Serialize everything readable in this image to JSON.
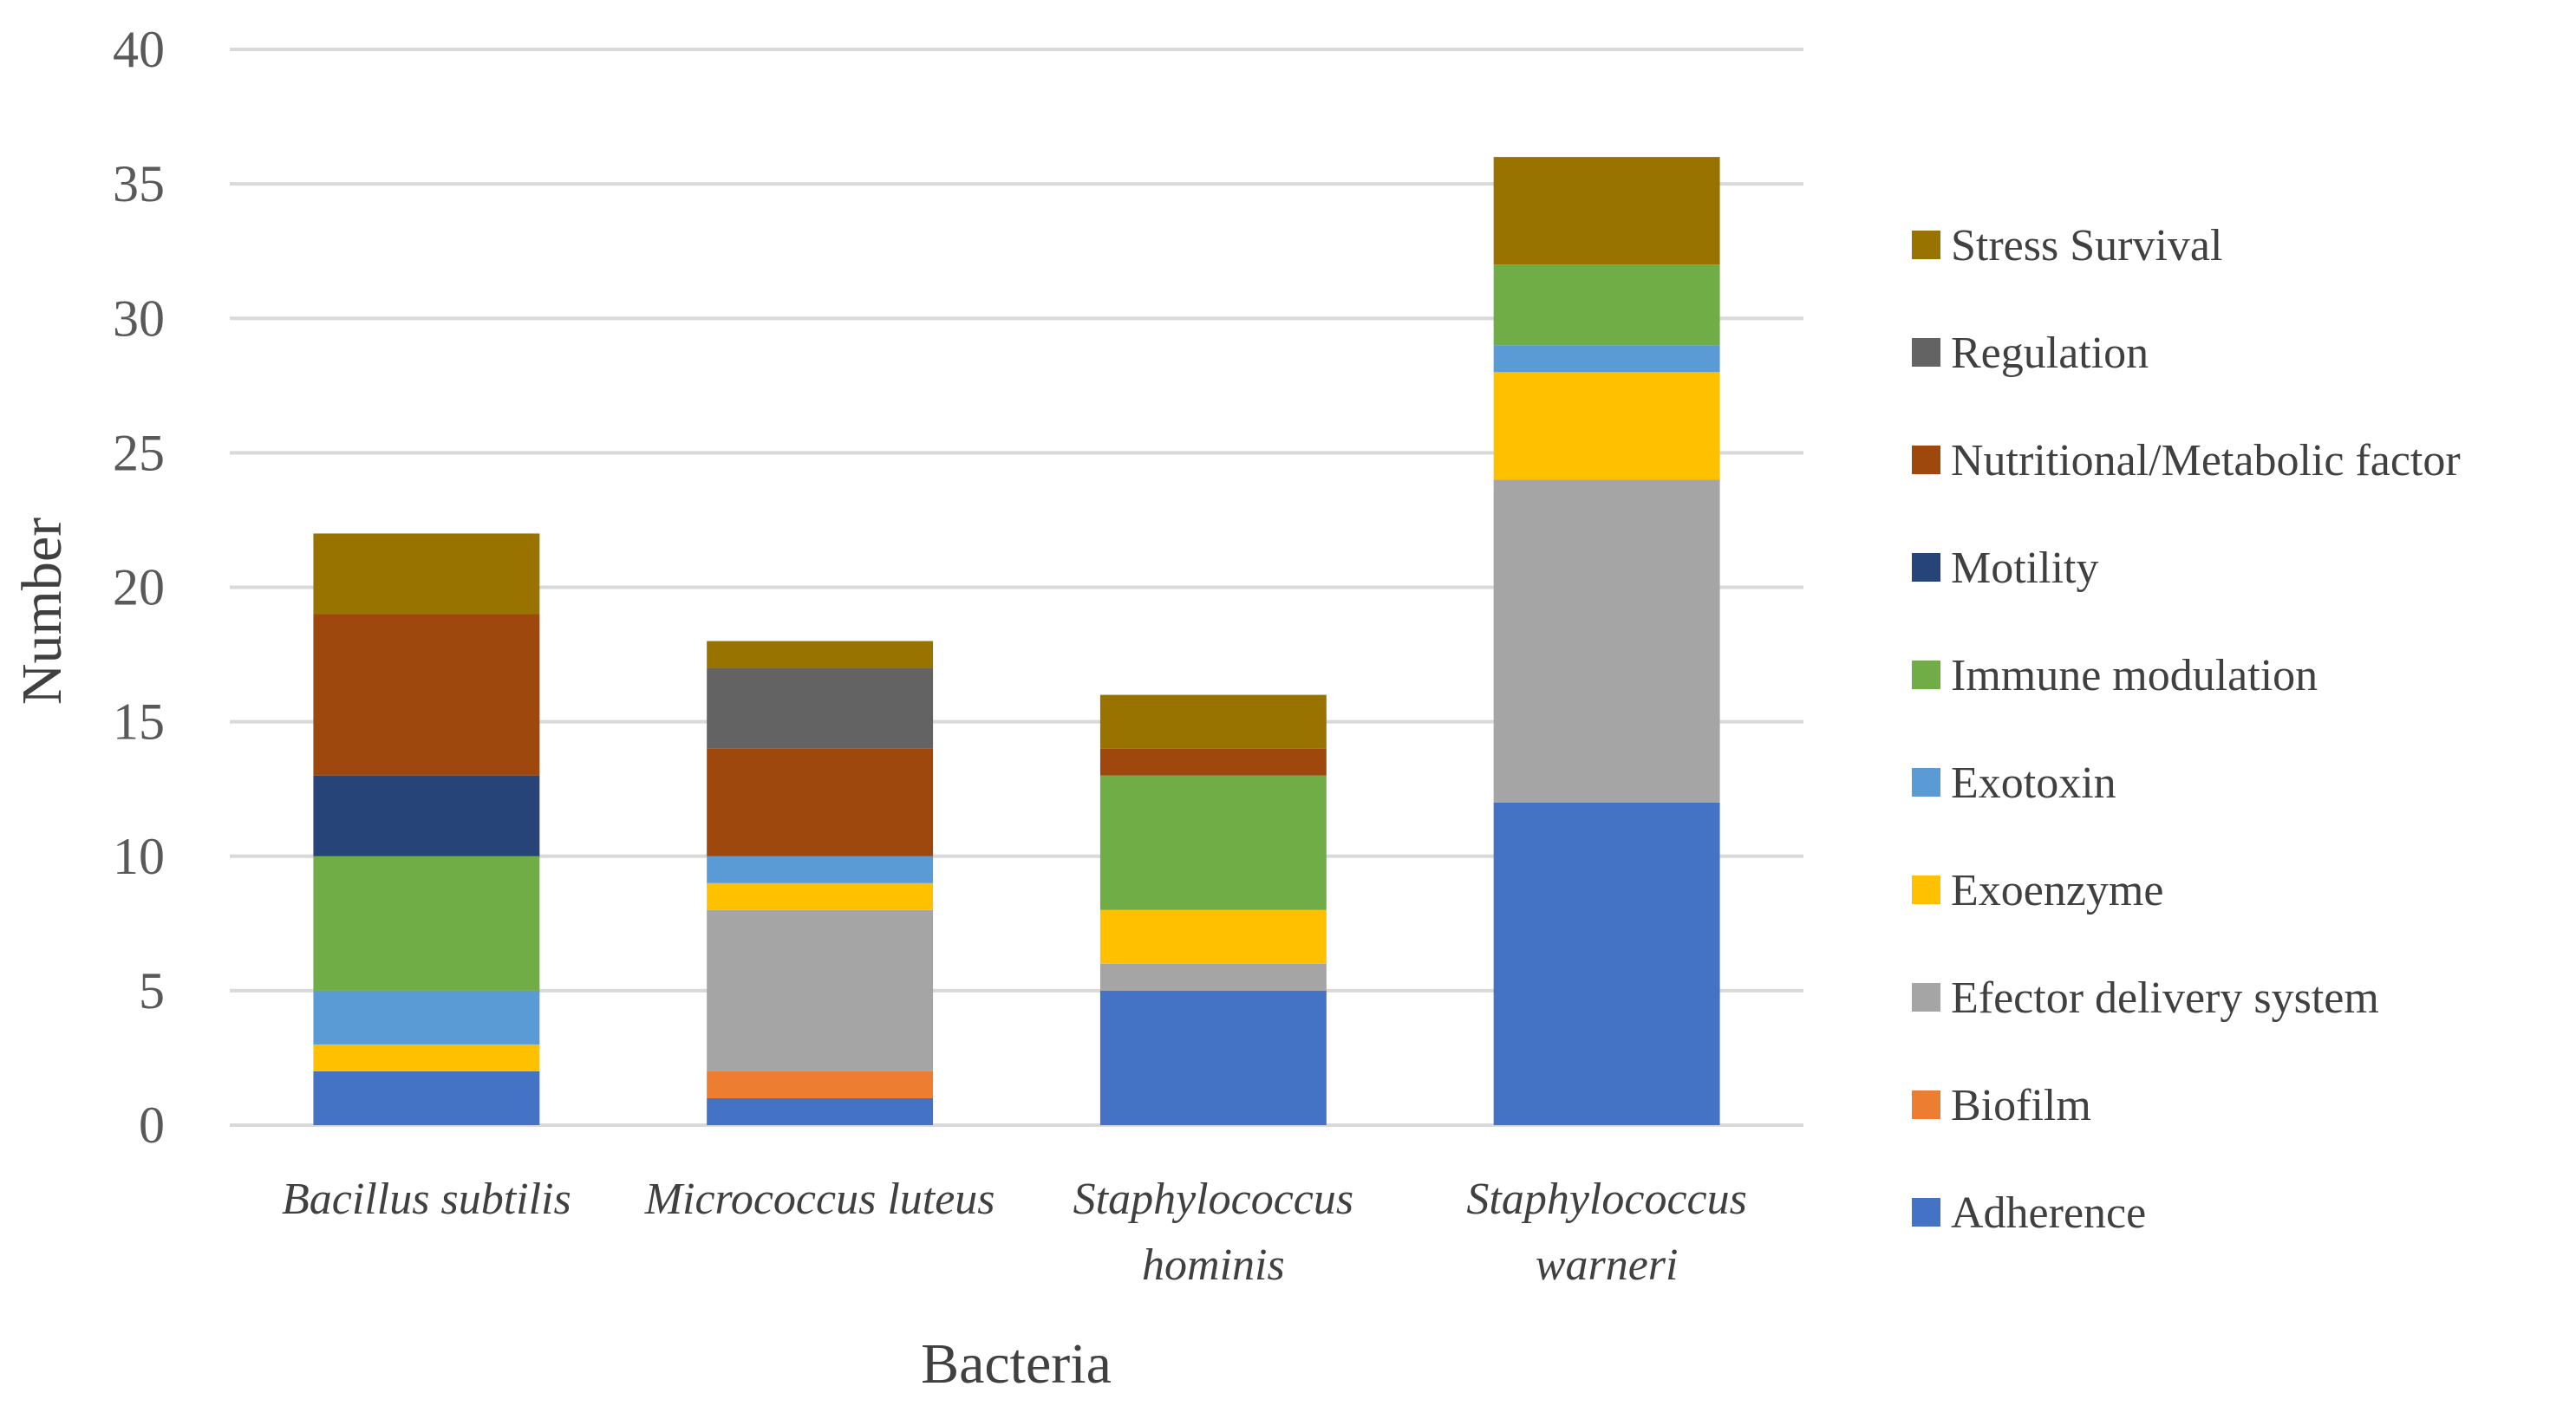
{
  "chart_data": {
    "type": "bar",
    "stacked": true,
    "xlabel": "Bacteria",
    "ylabel": "Number",
    "ylim": [
      0,
      40
    ],
    "yticks": [
      0,
      5,
      10,
      15,
      20,
      25,
      30,
      35,
      40
    ],
    "grid": true,
    "legend_position": "right",
    "categories": [
      [
        "Bacillus subtilis"
      ],
      [
        "Micrococcus luteus"
      ],
      [
        "Staphylococcus",
        "hominis"
      ],
      [
        "Staphylococcus",
        "warneri"
      ]
    ],
    "series": [
      {
        "name": "Adherence",
        "color": "#4472C4",
        "values": [
          2,
          1,
          5,
          12
        ]
      },
      {
        "name": "Biofilm",
        "color": "#ED7D31",
        "values": [
          0,
          1,
          0,
          0
        ]
      },
      {
        "name": "Efector delivery system",
        "color": "#A5A5A5",
        "values": [
          0,
          6,
          1,
          12
        ]
      },
      {
        "name": "Exoenzyme",
        "color": "#FFC000",
        "values": [
          1,
          1,
          2,
          4
        ]
      },
      {
        "name": "Exotoxin",
        "color": "#5B9BD5",
        "values": [
          2,
          1,
          0,
          1
        ]
      },
      {
        "name": "Immune modulation",
        "color": "#70AD47",
        "values": [
          5,
          0,
          5,
          3
        ]
      },
      {
        "name": "Motility",
        "color": "#264478",
        "values": [
          3,
          0,
          0,
          0
        ]
      },
      {
        "name": "Nutritional/Metabolic factor",
        "color": "#9E480E",
        "values": [
          6,
          4,
          1,
          0
        ]
      },
      {
        "name": "Regulation",
        "color": "#636363",
        "values": [
          0,
          3,
          0,
          0
        ]
      },
      {
        "name": "Stress Survival",
        "color": "#997300",
        "values": [
          3,
          1,
          2,
          4
        ]
      }
    ]
  }
}
